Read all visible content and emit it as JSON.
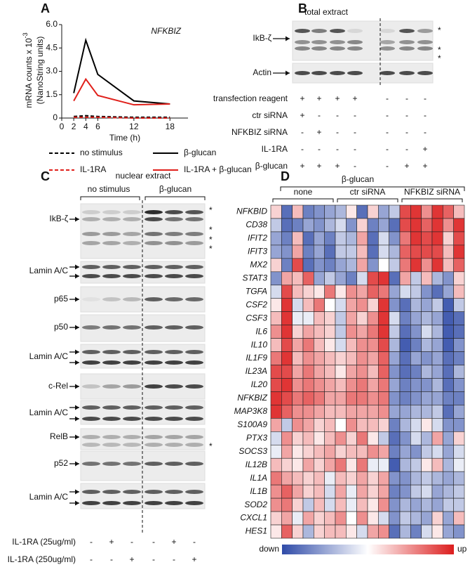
{
  "chart_data": [
    {
      "type": "line",
      "panel": "A",
      "annotation": "NFKBIZ",
      "ylabel": "mRNA counts x 10",
      "ylabel_exp": "-3",
      "ylabel2": "(NanoString units)",
      "xlabel": "Time (h)",
      "x": [
        2,
        4,
        6,
        12,
        18
      ],
      "xlim": [
        0,
        21
      ],
      "xticks": [
        0,
        2,
        4,
        6,
        12,
        18
      ],
      "ylim": [
        0,
        6
      ],
      "yticks": [
        0,
        1.5,
        {
          "value": 3,
          "label": "3.0"
        },
        4.5,
        {
          "value": 6,
          "label": "6.0"
        }
      ],
      "series": [
        {
          "name": "no stimulus",
          "color": "#000000",
          "dash": true,
          "values": [
            0.1,
            0.15,
            0.1,
            0.05,
            0.05
          ]
        },
        {
          "name": "β-glucan",
          "color": "#000000",
          "dash": false,
          "values": [
            1.6,
            5.0,
            2.8,
            1.1,
            0.9
          ]
        },
        {
          "name": "IL-1RA",
          "color": "#e0201b",
          "dash": true,
          "values": [
            0.05,
            0.05,
            0.05,
            0.0,
            0.0
          ]
        },
        {
          "name": "IL-1RA + β-glucan",
          "color": "#e0201b",
          "dash": false,
          "values": [
            1.1,
            2.5,
            1.45,
            0.85,
            0.9
          ]
        }
      ]
    },
    {
      "type": "heatmap",
      "panel": "D",
      "header": "β-glucan",
      "groups": [
        "none",
        "ctr siRNA",
        "NFKBIZ siRNA"
      ],
      "scale_labels": [
        "down",
        "up"
      ],
      "vlim": [
        -1,
        1
      ],
      "rows": [
        "NFKBID",
        "CD38",
        "IFIT2",
        "IFIT3",
        "MX2",
        "STAT3",
        "TGFA",
        "CSF2",
        "CSF3",
        "IL6",
        "IL10",
        "IL1F9",
        "IL23A",
        "IL20",
        "NFKBIZ",
        "MAP3K8",
        "S100A9",
        "PTX3",
        "SOCS3",
        "IL12B",
        "IL1A",
        "IL1B",
        "SOD2",
        "CXCL1",
        "HES1"
      ],
      "values": [
        [
          0.2,
          -0.8,
          0.3,
          -0.7,
          -0.6,
          -0.5,
          -0.4,
          0.1,
          -0.8,
          0.2,
          -0.5,
          -0.3,
          0.8,
          0.9,
          0.5,
          0.9,
          0.7,
          0.3
        ],
        [
          -0.3,
          -0.8,
          -0.7,
          -0.5,
          -0.6,
          -0.4,
          -0.2,
          -0.6,
          0.2,
          -0.7,
          -0.5,
          -0.8,
          0.8,
          0.9,
          0.7,
          0.9,
          0.5,
          0.9
        ],
        [
          -0.5,
          -0.7,
          0.3,
          -0.8,
          -0.5,
          -0.7,
          -0.3,
          -0.4,
          0.4,
          -0.8,
          -0.2,
          -0.6,
          0.6,
          0.9,
          0.8,
          0.9,
          0.2,
          0.8
        ],
        [
          -0.5,
          -0.6,
          0.4,
          -0.7,
          -0.5,
          -0.8,
          -0.3,
          -0.3,
          0.3,
          -0.8,
          -0.2,
          -0.4,
          0.7,
          0.8,
          0.8,
          0.8,
          0.3,
          0.9
        ],
        [
          0.2,
          -0.7,
          0.8,
          -0.8,
          -0.6,
          -0.7,
          -0.5,
          -0.4,
          0.4,
          -0.6,
          0.0,
          -0.3,
          0.6,
          0.9,
          0.5,
          0.9,
          0.3,
          0.7
        ],
        [
          -0.6,
          0.4,
          0.3,
          0.7,
          -0.5,
          -0.3,
          -0.5,
          -0.7,
          -0.2,
          0.8,
          0.9,
          -0.8,
          0.4,
          -0.3,
          0.3,
          -0.4,
          -0.6,
          0.2
        ],
        [
          -0.2,
          0.8,
          0.3,
          0.2,
          0.1,
          0.6,
          0.1,
          0.5,
          0.4,
          0.7,
          0.6,
          -0.5,
          -0.2,
          -0.3,
          -0.6,
          -0.8,
          -0.5,
          0.3
        ],
        [
          0.1,
          0.9,
          -0.2,
          0.3,
          0.6,
          0.0,
          -0.2,
          0.4,
          0.5,
          0.2,
          0.9,
          -0.6,
          -0.8,
          -0.4,
          -0.5,
          -0.3,
          -0.9,
          -0.3
        ],
        [
          0.3,
          0.9,
          -0.1,
          -0.1,
          0.3,
          0.2,
          -0.3,
          0.4,
          0.2,
          0.5,
          0.9,
          -0.2,
          -0.7,
          -0.5,
          -0.4,
          -0.5,
          -0.9,
          -0.8
        ],
        [
          0.5,
          0.9,
          0.2,
          0.4,
          0.3,
          0.2,
          -0.3,
          0.5,
          0.4,
          0.6,
          0.9,
          -0.3,
          -0.8,
          -0.6,
          -0.2,
          -0.4,
          -0.9,
          -0.8
        ],
        [
          0.3,
          0.8,
          0.4,
          0.6,
          0.3,
          0.1,
          -0.2,
          0.3,
          0.5,
          0.5,
          0.8,
          -0.4,
          -0.9,
          -0.7,
          -0.4,
          -0.5,
          -0.9,
          -0.6
        ],
        [
          0.6,
          0.9,
          0.3,
          0.5,
          0.4,
          0.3,
          0.2,
          0.3,
          0.5,
          0.4,
          0.7,
          -0.5,
          -0.8,
          -0.5,
          -0.6,
          -0.5,
          -0.8,
          -0.7
        ],
        [
          0.8,
          0.8,
          0.4,
          0.6,
          0.4,
          0.3,
          0.1,
          0.4,
          0.5,
          0.3,
          0.7,
          -0.6,
          -0.8,
          -0.7,
          -0.4,
          -0.5,
          -0.8,
          -0.4
        ],
        [
          0.8,
          0.9,
          0.5,
          0.6,
          0.5,
          0.4,
          0.3,
          0.5,
          0.6,
          0.4,
          0.6,
          -0.5,
          -0.7,
          -0.6,
          -0.6,
          -0.4,
          -0.8,
          -0.6
        ],
        [
          0.9,
          0.8,
          0.6,
          0.7,
          0.6,
          0.4,
          0.4,
          0.6,
          0.6,
          0.5,
          0.6,
          -0.6,
          -0.7,
          -0.6,
          -0.5,
          -0.5,
          -0.7,
          -0.7
        ],
        [
          0.9,
          0.7,
          0.5,
          0.5,
          0.4,
          0.3,
          0.3,
          0.4,
          0.4,
          0.4,
          0.5,
          -0.5,
          -0.5,
          -0.4,
          -0.4,
          -0.3,
          -0.8,
          -0.5
        ],
        [
          0.4,
          -0.3,
          0.5,
          0.4,
          0.2,
          0.3,
          0.0,
          0.5,
          0.3,
          0.3,
          0.2,
          -0.7,
          -0.4,
          -0.2,
          0.1,
          -0.2,
          -0.6,
          -0.6
        ],
        [
          -0.2,
          0.5,
          0.2,
          0.3,
          0.1,
          0.3,
          0.5,
          0.2,
          0.6,
          0.1,
          -0.3,
          -0.8,
          -0.6,
          -0.2,
          -0.4,
          0.4,
          -0.5,
          0.2
        ],
        [
          -0.1,
          0.4,
          0.1,
          0.2,
          0.3,
          0.4,
          0.2,
          0.3,
          0.3,
          0.5,
          0.4,
          -0.7,
          -0.5,
          -0.6,
          -0.3,
          -0.2,
          -0.5,
          -0.2
        ],
        [
          0.3,
          0.2,
          0.1,
          0.4,
          0.2,
          0.4,
          0.6,
          0.1,
          0.6,
          -0.1,
          -0.1,
          -0.9,
          -0.4,
          -0.3,
          0.1,
          0.3,
          -0.4,
          -0.1
        ],
        [
          0.6,
          0.4,
          0.3,
          0.2,
          0.3,
          -0.1,
          0.3,
          0.2,
          0.4,
          0.2,
          0.4,
          -0.6,
          -0.6,
          -0.4,
          -0.3,
          -0.4,
          -0.5,
          -0.4
        ],
        [
          0.5,
          0.7,
          0.4,
          0.2,
          0.3,
          -0.2,
          0.4,
          -0.1,
          0.4,
          0.2,
          0.4,
          -0.7,
          -0.6,
          -0.3,
          -0.2,
          -0.5,
          -0.4,
          -0.3
        ],
        [
          0.5,
          0.6,
          0.2,
          -0.3,
          0.3,
          -0.2,
          0.3,
          -0.1,
          0.3,
          0.1,
          0.5,
          -0.6,
          -0.4,
          -0.5,
          -0.4,
          -0.5,
          -0.3,
          -0.3
        ],
        [
          0.2,
          0.4,
          -0.1,
          0.4,
          0.2,
          0.3,
          0.5,
          0.0,
          0.5,
          0.1,
          -0.2,
          -0.6,
          -0.3,
          -0.4,
          -0.5,
          0.2,
          -0.5,
          0.3
        ],
        [
          0.1,
          0.7,
          0.2,
          -0.4,
          0.2,
          0.3,
          0.3,
          0.1,
          -0.2,
          0.4,
          0.5,
          -0.8,
          -0.4,
          -0.7,
          -0.2,
          0.1,
          -0.5,
          -0.6
        ]
      ]
    }
  ],
  "panel_b": {
    "panel": "B",
    "title": "total extract",
    "blots": [
      "IkB-ζ",
      "Actin"
    ],
    "asterisks": [
      "*",
      "*",
      "*"
    ],
    "rows": [
      {
        "label": "transfection reagent",
        "marks": [
          "+",
          "+",
          "+",
          "+",
          "-",
          "-",
          "-"
        ]
      },
      {
        "label": "ctr siRNA",
        "marks": [
          "+",
          "-",
          "-",
          "-",
          "-",
          "-",
          "-"
        ]
      },
      {
        "label": "NFKBIZ siRNA",
        "marks": [
          "-",
          "+",
          "-",
          "-",
          "-",
          "-",
          "-"
        ]
      },
      {
        "label": "IL-1RA",
        "marks": [
          "-",
          "-",
          "-",
          "-",
          "-",
          "-",
          "+"
        ]
      },
      {
        "label": "β-glucan",
        "marks": [
          "+",
          "+",
          "+",
          "-",
          "-",
          "+",
          "+"
        ]
      }
    ]
  },
  "panel_c": {
    "panel": "C",
    "title": "nuclear extract",
    "groups": [
      "no stimulus",
      "β-glucan"
    ],
    "blots": [
      "IkB-ζ",
      "Lamin A/C",
      "p65",
      "p50",
      "Lamin A/C",
      "c-Rel",
      "Lamin A/C",
      "RelB",
      "p52",
      "Lamin A/C"
    ],
    "asterisks": [
      "*",
      "*",
      "*",
      "*",
      "*"
    ],
    "rows": [
      {
        "label": "IL-1RA (25ug/ml)",
        "marks": [
          "-",
          "+",
          "-",
          "-",
          "+",
          "-"
        ]
      },
      {
        "label": "IL-1RA (250ug/ml)",
        "marks": [
          "-",
          "-",
          "+",
          "-",
          "-",
          "+"
        ]
      }
    ]
  }
}
